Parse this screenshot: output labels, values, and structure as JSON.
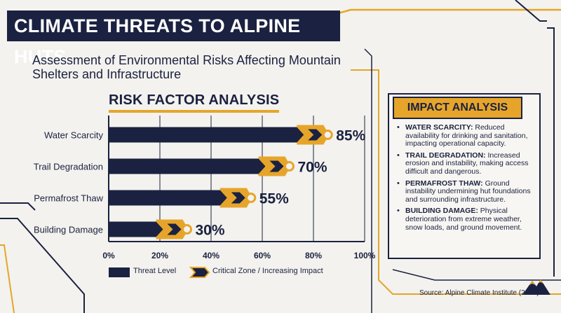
{
  "title": "CLIMATE THREATS TO ALPINE HUTS",
  "subtitle": "Assessment of Environmental Risks Affecting Mountain Shelters and Infrastructure",
  "section_title": "RISK FACTOR ANALYSIS",
  "impact": {
    "title": "IMPACT ANALYSIS",
    "items": [
      {
        "label": "WATER SCARCITY:",
        "text": "Reduced availability for drinking and sanitation, impacting operational capacity."
      },
      {
        "label": "TRAIL DEGRADATION:",
        "text": "Increased erosion and instability, making access difficult and dangerous."
      },
      {
        "label": "PERMAFROST THAW:",
        "text": "Ground instability undermining hut foundations and surrounding infrastructure."
      },
      {
        "label": "BUILDING DAMAGE:",
        "text": "Physical deterioration from extreme weather, snow loads, and ground movement."
      }
    ]
  },
  "source": "Source: Alpine Climate Institute (2024)",
  "colors": {
    "navy": "#1b2140",
    "gold": "#e6a52a",
    "background": "#f3f2ee"
  },
  "chart_data": {
    "type": "bar",
    "orientation": "horizontal",
    "categories": [
      "Water Scarcity",
      "Trail Degradation",
      "Permafrost Thaw",
      "Building Damage"
    ],
    "values": [
      85,
      70,
      55,
      30
    ],
    "value_labels": [
      "85%",
      "70%",
      "55%",
      "30%"
    ],
    "xlim": [
      0,
      100
    ],
    "xticks": [
      "0%",
      "20%",
      "40%",
      "60%",
      "80%",
      "100%"
    ],
    "grid": true,
    "legend": [
      "Threat Level",
      "Critical Zone / Increasing Impact"
    ],
    "legend_position": "bottom"
  }
}
